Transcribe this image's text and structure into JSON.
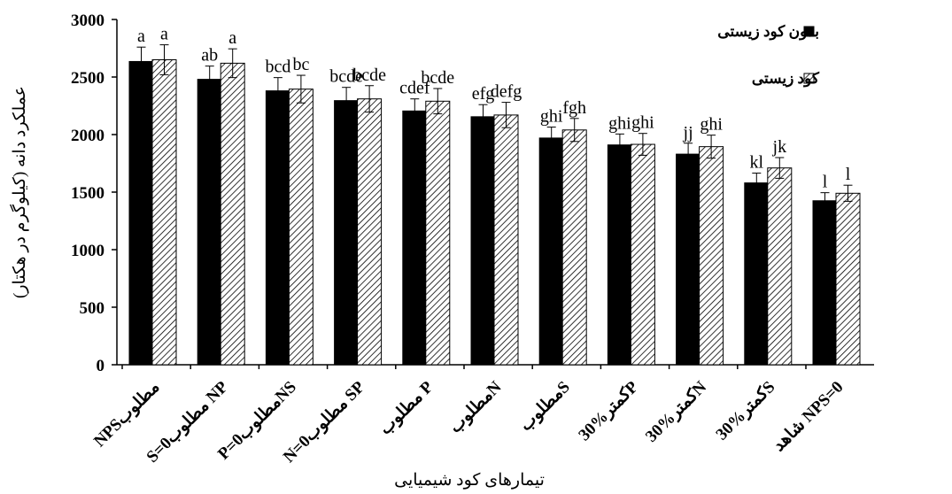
{
  "chart_data": {
    "type": "bar",
    "title": "",
    "xlabel": "تیمارهای کود شیمیایی",
    "ylabel": "عملکرد دانه (کیلوگرم در هکتار)",
    "ylim": [
      0,
      3000
    ],
    "yticks": [
      "0",
      "500",
      "1000",
      "1500",
      "2000",
      "2500",
      "3000"
    ],
    "categories": [
      "NPSمطلوب",
      "S=0مطلوب NP",
      "P=0مطلوبNS",
      "N=0مطلوب SP",
      "مطلوب P",
      "مطلوبN",
      "مطلوبS",
      "کمتر%30P",
      "کمتر%30N",
      "کمتر%30S",
      "شاهد NPS=0"
    ],
    "grid": false,
    "legend_position": "top-right",
    "series": [
      {
        "name": "بدون کود زیستی",
        "color": "#000000",
        "pattern": "solid",
        "values": [
          2635,
          2480,
          2380,
          2295,
          2205,
          2155,
          1970,
          1910,
          1830,
          1580,
          1425
        ],
        "errors": [
          125,
          115,
          115,
          115,
          105,
          105,
          95,
          95,
          95,
          85,
          70
        ],
        "labels": [
          "a",
          "ab",
          "bcd",
          "bcde",
          "cdef",
          "efg",
          "ghi",
          "ghi",
          "jj",
          "kl",
          "l"
        ]
      },
      {
        "name": "کود زیستی",
        "color": "#ffffff",
        "pattern": "hatched",
        "values": [
          2650,
          2620,
          2395,
          2310,
          2290,
          2170,
          2040,
          1915,
          1895,
          1710,
          1490
        ],
        "errors": [
          130,
          125,
          120,
          115,
          110,
          110,
          100,
          95,
          100,
          90,
          70
        ],
        "labels": [
          "a",
          "a",
          "bc",
          "bcde",
          "bcde",
          "defg",
          "fgh",
          "ghi",
          "ghi",
          "jk",
          "l"
        ]
      }
    ]
  }
}
